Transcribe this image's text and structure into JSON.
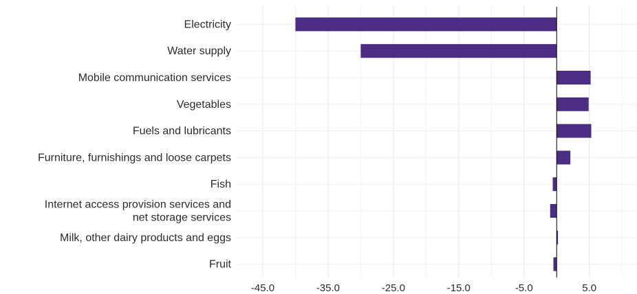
{
  "chart_data": {
    "type": "bar",
    "orientation": "horizontal",
    "title": "",
    "xlabel": "",
    "ylabel": "",
    "categories": [
      [
        "Electricity"
      ],
      [
        "Water supply"
      ],
      [
        "Mobile communication services"
      ],
      [
        "Vegetables"
      ],
      [
        "Fuels and lubricants"
      ],
      [
        "Furniture, furnishings and loose carpets"
      ],
      [
        "Fish"
      ],
      [
        "Internet access provision services and",
        "net storage services"
      ],
      [
        "Milk, other dairy products and eggs"
      ],
      [
        "Fruit"
      ]
    ],
    "values": [
      -40.0,
      -30.0,
      5.2,
      4.9,
      5.3,
      2.1,
      -0.6,
      -1.0,
      0.2,
      -0.5
    ],
    "xlim": [
      -49.0,
      12.3
    ],
    "xticks": [
      -45,
      -35,
      -25,
      -15,
      -5,
      5
    ],
    "xtick_labels": [
      "-45.0",
      "-35.0",
      "-25.0",
      "-15.0",
      "-5.0",
      "5.0"
    ],
    "bar_color": "#4b2e83",
    "grid": true,
    "zero_line": true,
    "legend": "none"
  }
}
